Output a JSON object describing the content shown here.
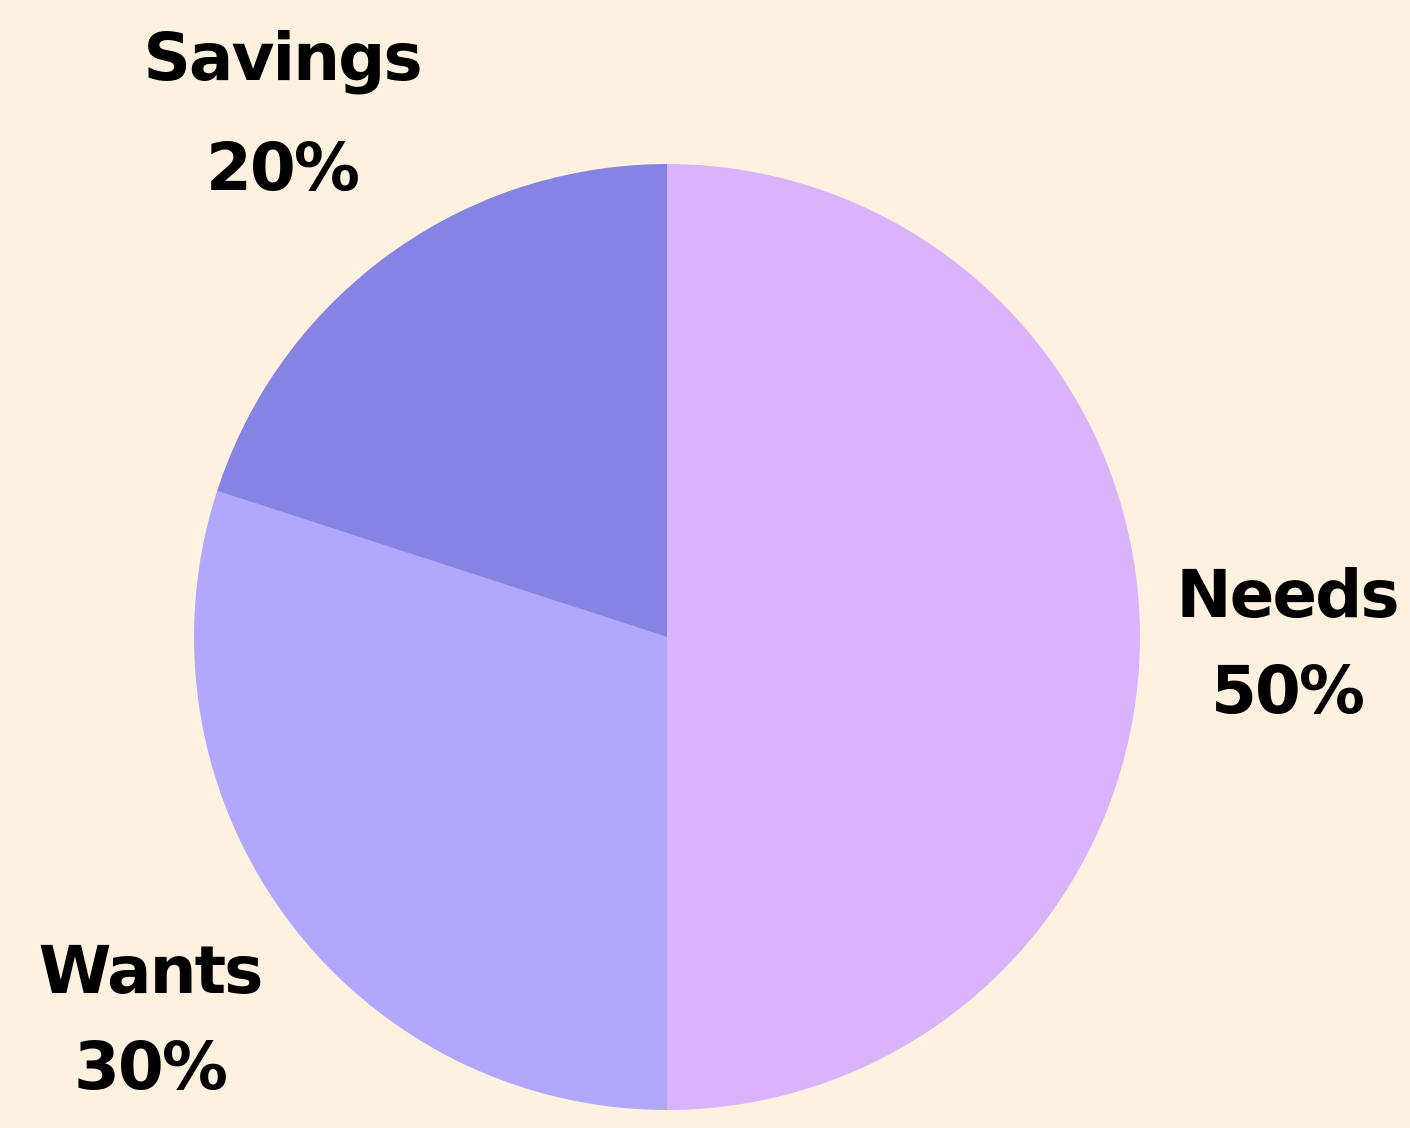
{
  "chart_data": {
    "type": "pie",
    "title": "",
    "start_angle_deg": 0,
    "direction": "clockwise",
    "background": "#fff1df",
    "slices": [
      {
        "label": "Needs",
        "value": 50,
        "value_label": "50%",
        "color": "#dbb3fd"
      },
      {
        "label": "Wants",
        "value": 30,
        "value_label": "30%",
        "color": "#b1a8fe"
      },
      {
        "label": "Savings",
        "value": 20,
        "value_label": "20%",
        "color": "#8684e2"
      }
    ]
  }
}
